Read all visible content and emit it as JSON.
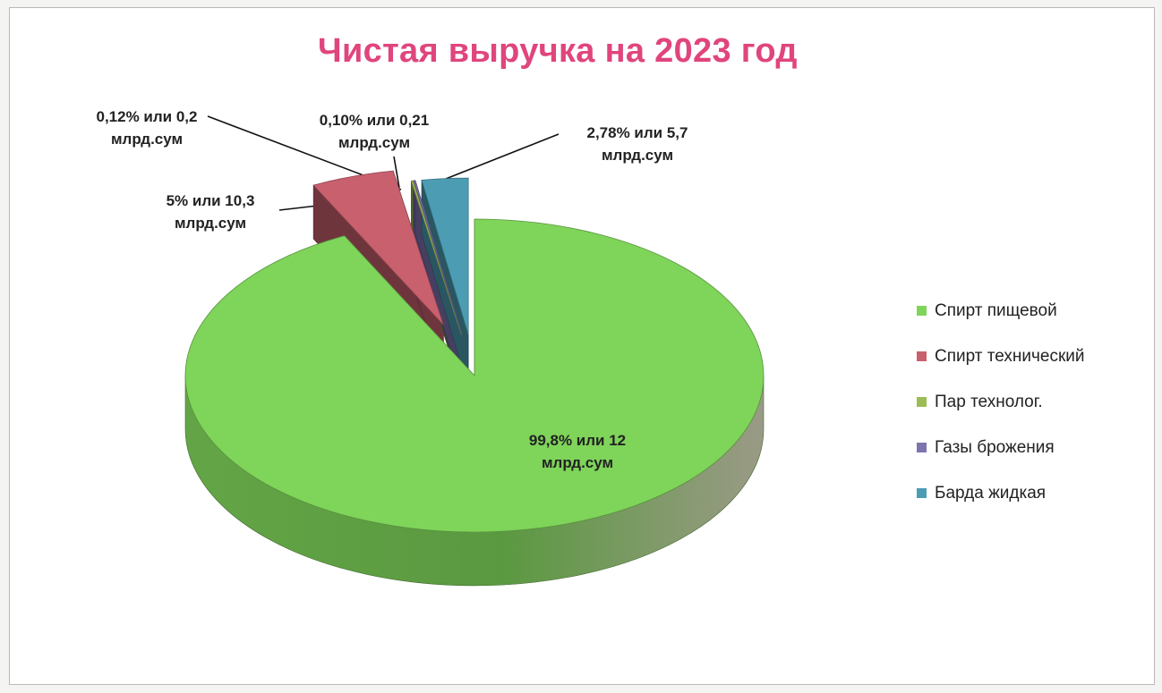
{
  "chart_data": {
    "type": "pie",
    "title": "Чистая выручка на 2023 год",
    "slices": [
      {
        "name": "Спирт пищевой",
        "value": 99.8,
        "label": [
          "99,8% или 12",
          "млрд.сум"
        ],
        "color": "#7fd45a"
      },
      {
        "name": "Спирт технический",
        "value": 5,
        "label": [
          "5% или 10,3",
          "млрд.сум"
        ],
        "color": "#c9606e"
      },
      {
        "name": "Пар технолог.",
        "value": 0.12,
        "label": [
          "0,12% или 0,2",
          "млрд.сум"
        ],
        "color": "#9cbb55"
      },
      {
        "name": "Газы брожения",
        "value": 0.1,
        "label": [
          "0,10% или 0,21",
          "млрд.сум"
        ],
        "color": "#7f73b0"
      },
      {
        "name": "Барда жидкая",
        "value": 2.78,
        "label": [
          "2,78% или 5,7",
          "млрд.сум"
        ],
        "color": "#4c9db3"
      }
    ],
    "legend_position": "right"
  }
}
